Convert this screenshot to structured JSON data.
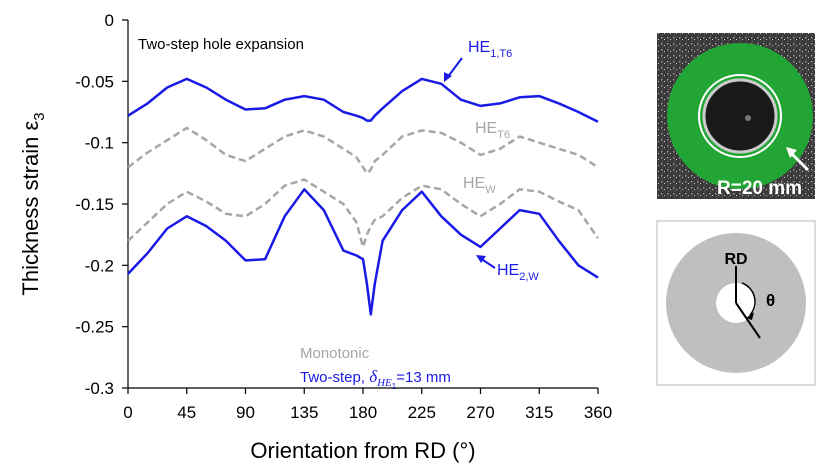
{
  "chart_data": {
    "type": "line",
    "annotation": "Two-step hole expansion",
    "y_label": "Thickness strain ε",
    "y_label_sub": "3",
    "x_label": "Orientation from RD (°)",
    "xlim": [
      0,
      360
    ],
    "xticks": [
      0,
      45,
      90,
      135,
      180,
      225,
      270,
      315,
      360
    ],
    "ylim": [
      -0.3,
      0
    ],
    "yticks": [
      0,
      -0.05,
      -0.1,
      -0.15,
      -0.2,
      -0.25,
      -0.3
    ],
    "x": [
      0,
      15,
      30,
      45,
      60,
      75,
      90,
      105,
      120,
      135,
      150,
      165,
      175,
      180,
      183,
      186,
      189,
      195,
      210,
      225,
      240,
      255,
      270,
      285,
      300,
      315,
      330,
      345,
      360
    ],
    "series": [
      {
        "name": "HE",
        "subscript": "1,T6",
        "color": "#1a1ae6",
        "dashed": false,
        "values": [
          -0.078,
          -0.068,
          -0.055,
          -0.048,
          -0.055,
          -0.065,
          -0.073,
          -0.072,
          -0.065,
          -0.062,
          -0.065,
          -0.075,
          -0.078,
          -0.08,
          -0.082,
          -0.082,
          -0.078,
          -0.072,
          -0.058,
          -0.048,
          -0.052,
          -0.065,
          -0.07,
          -0.068,
          -0.063,
          -0.062,
          -0.068,
          -0.075,
          -0.083
        ]
      },
      {
        "name": "HE",
        "subscript": "T6",
        "color": "#a6a6a6",
        "dashed": true,
        "values": [
          -0.12,
          -0.108,
          -0.098,
          -0.088,
          -0.098,
          -0.11,
          -0.115,
          -0.105,
          -0.095,
          -0.09,
          -0.095,
          -0.105,
          -0.112,
          -0.12,
          -0.125,
          -0.122,
          -0.115,
          -0.11,
          -0.095,
          -0.09,
          -0.092,
          -0.1,
          -0.11,
          -0.105,
          -0.095,
          -0.1,
          -0.105,
          -0.11,
          -0.12
        ]
      },
      {
        "name": "HE",
        "subscript": "W",
        "color": "#a6a6a6",
        "dashed": true,
        "values": [
          -0.18,
          -0.165,
          -0.15,
          -0.14,
          -0.148,
          -0.158,
          -0.16,
          -0.15,
          -0.135,
          -0.13,
          -0.14,
          -0.15,
          -0.165,
          -0.185,
          -0.175,
          -0.168,
          -0.163,
          -0.16,
          -0.145,
          -0.135,
          -0.138,
          -0.15,
          -0.16,
          -0.15,
          -0.138,
          -0.14,
          -0.148,
          -0.155,
          -0.178
        ]
      },
      {
        "name": "HE",
        "subscript": "2,W",
        "color": "#1a1ae6",
        "dashed": false,
        "values": [
          -0.207,
          -0.19,
          -0.17,
          -0.16,
          -0.168,
          -0.18,
          -0.196,
          -0.195,
          -0.16,
          -0.138,
          -0.155,
          -0.188,
          -0.192,
          -0.195,
          -0.215,
          -0.24,
          -0.215,
          -0.18,
          -0.155,
          -0.14,
          -0.16,
          -0.175,
          -0.185,
          -0.17,
          -0.155,
          -0.158,
          -0.18,
          -0.2,
          -0.21
        ]
      }
    ],
    "note_gray": "Monotonic",
    "note_blue": {
      "prefix": "Two-step, ",
      "symbol": "δ",
      "sub": "HE",
      "subsub": "1",
      "suffix": "=13 mm"
    },
    "photo_label": "R=20 mm",
    "diagram_rd": "RD",
    "diagram_angle": "θ"
  }
}
